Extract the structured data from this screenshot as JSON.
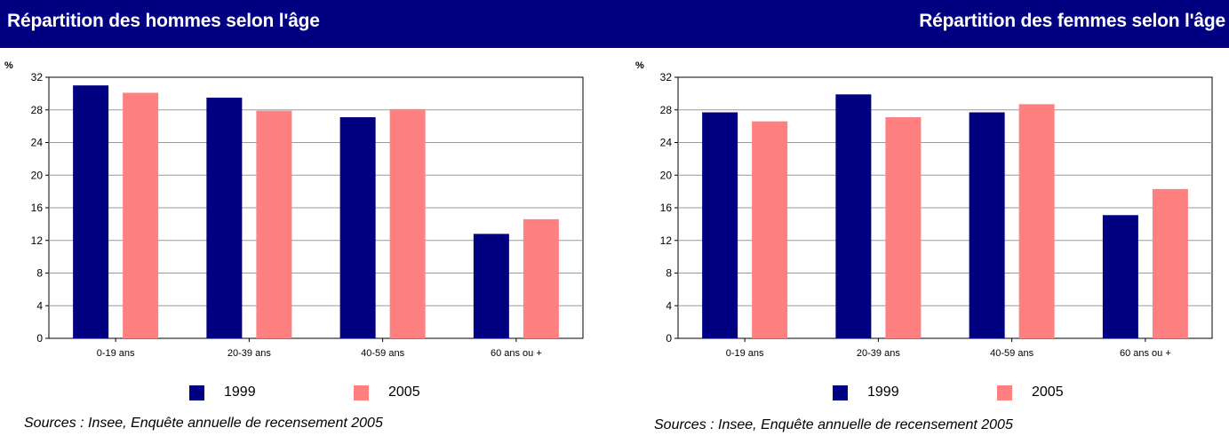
{
  "colors": {
    "header_bg": "#000080",
    "header_text": "#ffffff",
    "series_1999": "#000080",
    "series_2005": "#FF8080"
  },
  "charts": {
    "left": {
      "title": "Répartition des hommes selon l'âge",
      "source": "Sources : Insee, Enquête annuelle de recensement 2005"
    },
    "right": {
      "title": "Répartition des femmes selon l'âge",
      "source": "Sources : Insee, Enquête annuelle de recensement 2005"
    }
  },
  "chart_data": [
    {
      "type": "bar",
      "title": "Répartition des hommes selon l'âge",
      "ylabel": "%",
      "ylim": [
        0,
        32
      ],
      "yticks": [
        0,
        4,
        8,
        12,
        16,
        20,
        24,
        28,
        32
      ],
      "grid": true,
      "legend": "bottom",
      "categories": [
        "0-19 ans",
        "20-39 ans",
        "40-59 ans",
        "60 ans ou +"
      ],
      "series": [
        {
          "name": "1999",
          "color": "#000080",
          "values": [
            31.0,
            29.5,
            27.1,
            12.8
          ]
        },
        {
          "name": "2005",
          "color": "#FF8080",
          "values": [
            30.1,
            27.9,
            28.1,
            14.6
          ]
        }
      ]
    },
    {
      "type": "bar",
      "title": "Répartition des femmes selon l'âge",
      "ylabel": "%",
      "ylim": [
        0,
        32
      ],
      "yticks": [
        0,
        4,
        8,
        12,
        16,
        20,
        24,
        28,
        32
      ],
      "grid": true,
      "legend": "bottom",
      "categories": [
        "0-19 ans",
        "20-39 ans",
        "40-59 ans",
        "60 ans ou +"
      ],
      "series": [
        {
          "name": "1999",
          "color": "#000080",
          "values": [
            27.7,
            29.9,
            27.7,
            15.1
          ]
        },
        {
          "name": "2005",
          "color": "#FF8080",
          "values": [
            26.6,
            27.1,
            28.7,
            18.3
          ]
        }
      ]
    }
  ]
}
